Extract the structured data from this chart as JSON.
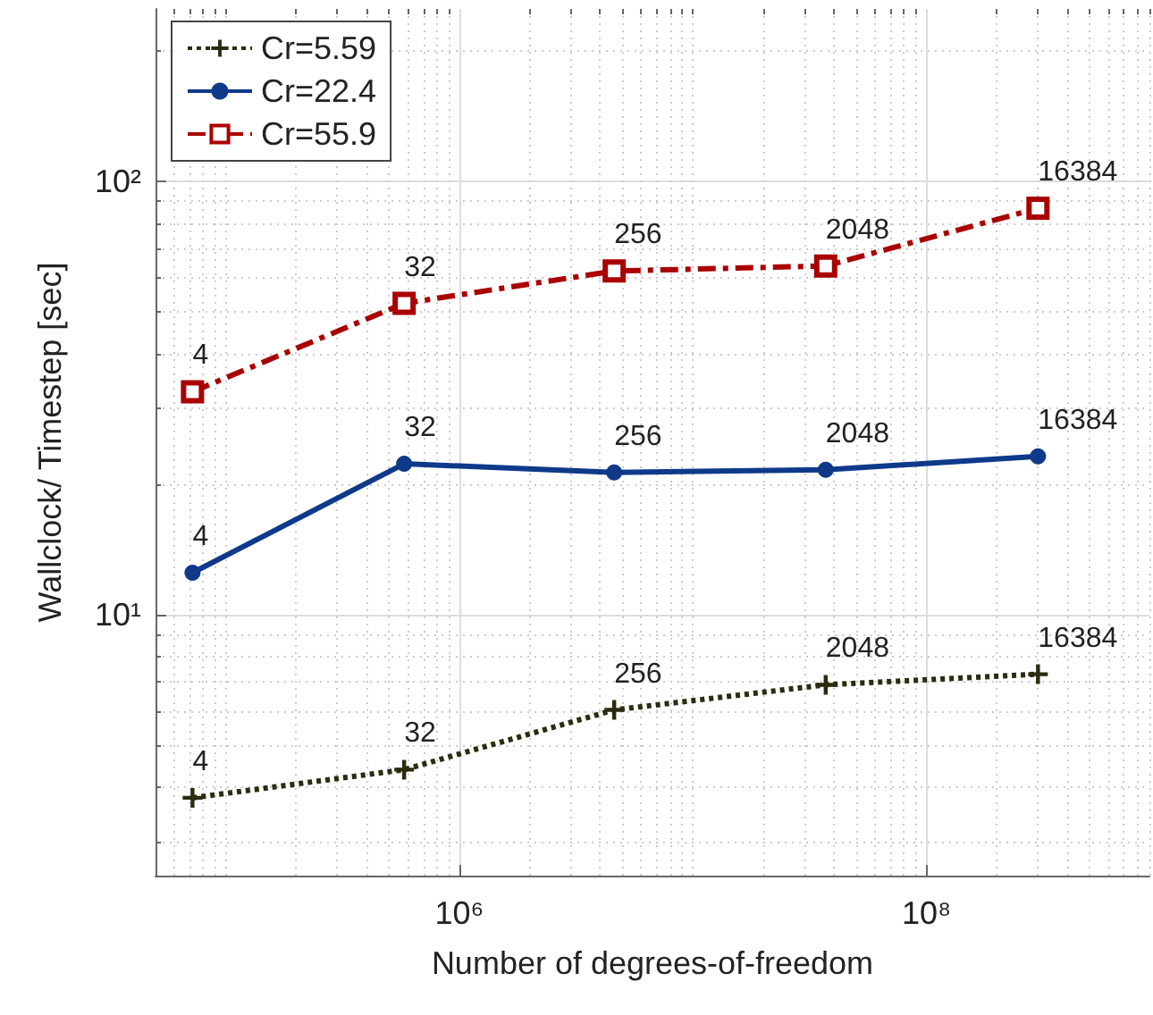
{
  "chart_data": {
    "type": "line",
    "xlabel": "Number of degrees-of-freedom",
    "ylabel": "Wallclock/ Timestep [sec]",
    "x": [
      72000,
      580000,
      4600000,
      37000000,
      300000000
    ],
    "series": [
      {
        "name": "Cr=5.59",
        "color": "#2b2b10",
        "marker": "cross",
        "line_style": "dotted",
        "values": [
          3.78,
          4.39,
          6.03,
          6.89,
          7.29
        ]
      },
      {
        "name": "Cr=22.4",
        "color": "#0f3a8a",
        "marker": "circle",
        "line_style": "solid",
        "values": [
          12.5,
          22.3,
          21.3,
          21.6,
          23.2
        ]
      },
      {
        "name": "Cr=55.9",
        "color": "#aa0000",
        "marker": "square",
        "line_style": "dashed",
        "values": [
          32.7,
          52.3,
          62.1,
          63.8,
          86.7
        ]
      }
    ],
    "annotations": [
      {
        "text": "4",
        "x": 72000,
        "y": 3.78
      },
      {
        "text": "32",
        "x": 580000,
        "y": 4.39
      },
      {
        "text": "256",
        "x": 4600000,
        "y": 6.03
      },
      {
        "text": "2048",
        "x": 37000000,
        "y": 6.89
      },
      {
        "text": "16384",
        "x": 300000000,
        "y": 7.29
      },
      {
        "text": "4",
        "x": 72000,
        "y": 12.5
      },
      {
        "text": "32",
        "x": 580000,
        "y": 22.3
      },
      {
        "text": "256",
        "x": 4600000,
        "y": 21.3
      },
      {
        "text": "2048",
        "x": 37000000,
        "y": 21.6
      },
      {
        "text": "16384",
        "x": 300000000,
        "y": 23.2
      },
      {
        "text": "4",
        "x": 72000,
        "y": 32.7
      },
      {
        "text": "32",
        "x": 580000,
        "y": 52.3
      },
      {
        "text": "256",
        "x": 4600000,
        "y": 62.1
      },
      {
        "text": "2048",
        "x": 37000000,
        "y": 63.8
      },
      {
        "text": "16384",
        "x": 300000000,
        "y": 86.7
      }
    ],
    "log": "xy",
    "xlim": [
      50000,
      900000000
    ],
    "xticks": [
      {
        "value": 1000000,
        "label": "10⁶"
      },
      {
        "value": 100000000,
        "label": "10⁸"
      }
    ],
    "ylim": [
      2.5,
      250
    ],
    "yticks": [
      {
        "value": 10,
        "label": "10¹"
      },
      {
        "value": 100,
        "label": "10²"
      }
    ],
    "grid": true,
    "legend": "top left"
  }
}
